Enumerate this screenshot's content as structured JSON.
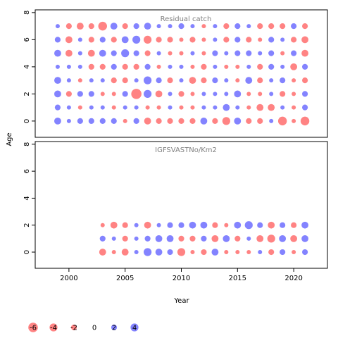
{
  "chart_data": {
    "type": "scatter",
    "xlabel": "Year",
    "ylabel": "Age",
    "xlim": [
      1997,
      2023
    ],
    "ylim": [
      -1.2,
      8.2
    ],
    "xticks": [
      2000,
      2005,
      2010,
      2015,
      2020
    ],
    "yticks": [
      0,
      2,
      4,
      6,
      8
    ],
    "colors": {
      "positive": "#4040ff",
      "negative": "#ff4040"
    },
    "years": [
      1999,
      2000,
      2001,
      2002,
      2003,
      2004,
      2005,
      2006,
      2007,
      2008,
      2009,
      2010,
      2011,
      2012,
      2013,
      2014,
      2015,
      2016,
      2017,
      2018,
      2019,
      2020,
      2021
    ],
    "panels": [
      {
        "title": "Residual catch",
        "ages": [
          0,
          1,
          2,
          3,
          4,
          5,
          6,
          7
        ],
        "residuals": [
          [
            3,
            1,
            2,
            2,
            2,
            2,
            -1,
            2,
            -3,
            -2,
            -2,
            -2,
            -2,
            3,
            -2,
            -4,
            3,
            -2,
            -2,
            1,
            -5,
            -1,
            -5
          ],
          [
            2,
            1,
            -1,
            1,
            1,
            -1,
            1,
            1,
            -1,
            -1,
            1,
            -1,
            -1,
            1,
            1,
            3,
            1,
            -1,
            -3,
            -3,
            1,
            -1,
            2
          ],
          [
            3,
            -2,
            2,
            2,
            -1,
            -1,
            2,
            -7,
            4,
            -3,
            1,
            -2,
            -1,
            1,
            1,
            1,
            3,
            -1,
            -1,
            1,
            -2,
            -1,
            2
          ],
          [
            3,
            1,
            -1,
            1,
            1,
            -2,
            -2,
            1,
            4,
            2,
            -2,
            1,
            -3,
            -2,
            2,
            1,
            -1,
            3,
            -2,
            1,
            2,
            -1,
            -2
          ],
          [
            1,
            1,
            1,
            -2,
            -2,
            2,
            -2,
            -2,
            2,
            -1,
            1,
            1,
            -1,
            -2,
            1,
            -1,
            -1,
            1,
            -2,
            2,
            1,
            -3,
            2
          ],
          [
            3,
            -3,
            1,
            -3,
            3,
            2,
            4,
            2,
            -2,
            1,
            -1,
            -1,
            1,
            -1,
            2,
            1,
            2,
            2,
            1,
            2,
            -1,
            2,
            -3
          ],
          [
            2,
            -3,
            1,
            -2,
            2,
            -2,
            3,
            4,
            -4,
            -2,
            -2,
            -1,
            -2,
            -1,
            1,
            -2,
            2,
            -2,
            -1,
            2,
            1,
            -2,
            -3
          ],
          [
            1,
            -2,
            -3,
            -2,
            -5,
            3,
            -2,
            2,
            3,
            1,
            1,
            2,
            1,
            -1,
            1,
            -2,
            2,
            1,
            -2,
            -2,
            -2,
            2,
            -2
          ]
        ]
      },
      {
        "title": "IGFSVASTNo/Km2",
        "ages": [
          0,
          1,
          2
        ],
        "residuals": [
          [
            null,
            null,
            null,
            null,
            -3,
            -1,
            -3,
            1,
            4,
            3,
            2,
            -4,
            -1,
            -2,
            3,
            -1,
            -1,
            -1,
            1,
            -2,
            2,
            -1,
            2
          ],
          [
            null,
            null,
            null,
            null,
            2,
            1,
            -2,
            1,
            2,
            3,
            3,
            -2,
            -2,
            2,
            -3,
            3,
            -2,
            1,
            -3,
            -4,
            3,
            -3,
            3
          ],
          [
            null,
            null,
            null,
            null,
            -1,
            -3,
            -2,
            1,
            -3,
            1,
            2,
            2,
            3,
            3,
            -2,
            -1,
            3,
            4,
            2,
            -3,
            2,
            -2,
            3
          ]
        ]
      }
    ],
    "legend": {
      "position": "bottom",
      "values": [
        -6,
        -4,
        -2,
        0,
        2,
        4
      ],
      "labels": [
        "-6",
        "-4",
        "-2",
        "0",
        "2",
        "4"
      ]
    }
  }
}
